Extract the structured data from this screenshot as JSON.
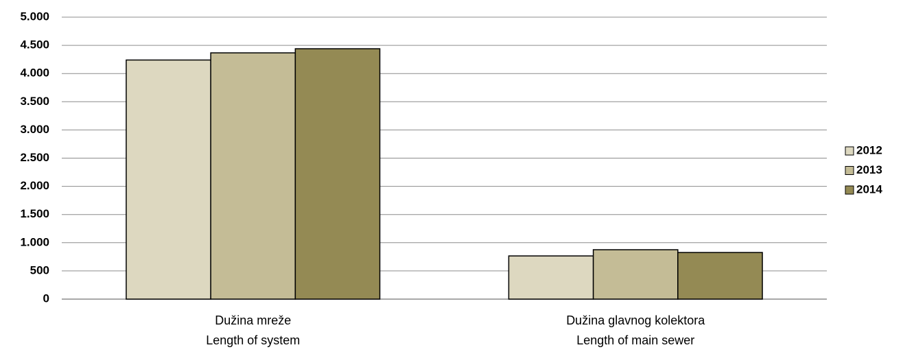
{
  "chart_data": {
    "type": "bar",
    "categories": [
      [
        "Dužina mreže",
        "Length of system"
      ],
      [
        "Dužina glavnog kolektora",
        "Length of main sewer"
      ]
    ],
    "series": [
      {
        "name": "2012",
        "color": "#ddd8c0",
        "values": [
          4240,
          766
        ]
      },
      {
        "name": "2013",
        "color": "#c4bc96",
        "values": [
          4367,
          876
        ]
      },
      {
        "name": "2014",
        "color": "#948a54",
        "values": [
          4440,
          827
        ]
      }
    ],
    "ylim": [
      0,
      5000
    ],
    "yticks": [
      0,
      500,
      {
        "value": 1000,
        "label": "1.000"
      },
      {
        "value": 1500,
        "label": "1.500"
      },
      {
        "value": 2000,
        "label": "2.000"
      },
      {
        "value": 2500,
        "label": "2.500"
      },
      {
        "value": 3000,
        "label": "3.000"
      },
      {
        "value": 3500,
        "label": "3.500"
      },
      {
        "value": 4000,
        "label": "4.000"
      },
      {
        "value": 4500,
        "label": "4.500"
      },
      {
        "value": 5000,
        "label": "5.000"
      }
    ],
    "grid": true,
    "legend": "right"
  }
}
